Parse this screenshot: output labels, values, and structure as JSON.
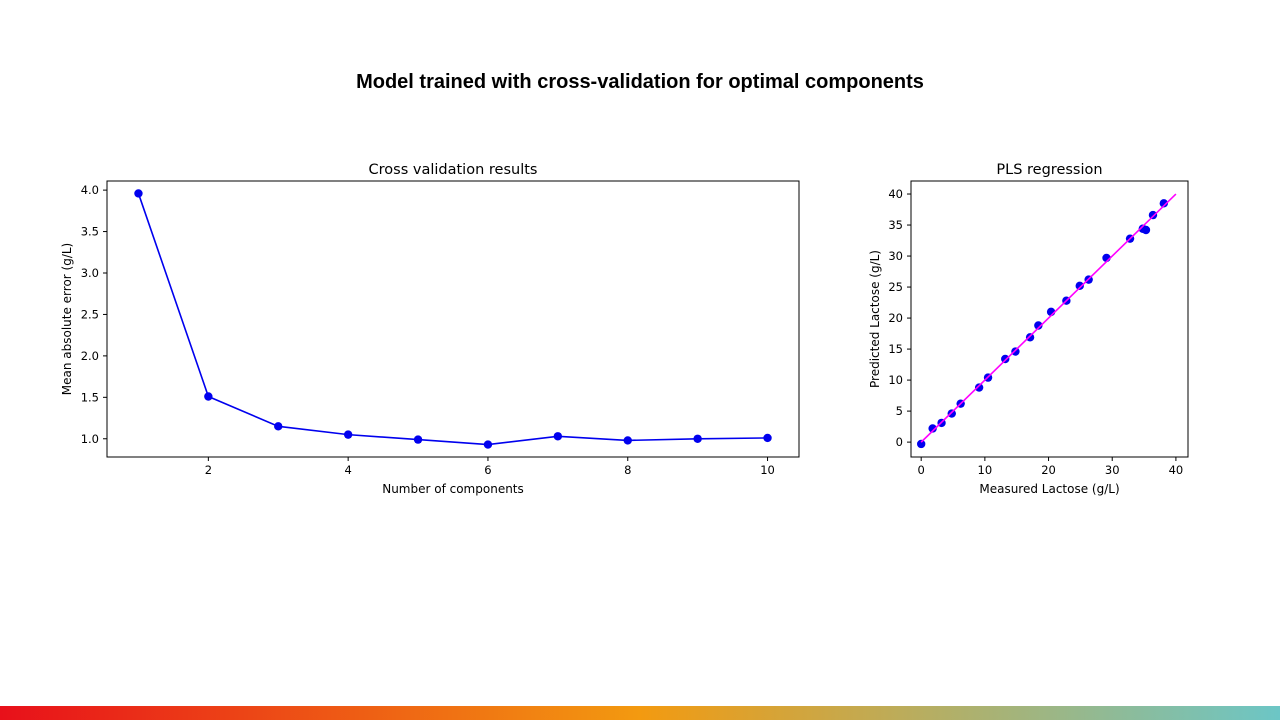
{
  "slide": {
    "title": "Model trained with cross-validation for optimal components",
    "footer_gradient": [
      "#e8101a",
      "#f39a10",
      "#6cc6c6"
    ]
  },
  "chart_data": [
    {
      "type": "line",
      "title": "Cross validation results",
      "xlabel": "Number of components",
      "ylabel": "Mean absolute error (g/L)",
      "x": [
        1,
        2,
        3,
        4,
        5,
        6,
        7,
        8,
        9,
        10
      ],
      "series": [
        {
          "values": [
            3.96,
            1.51,
            1.15,
            1.05,
            0.99,
            0.93,
            1.03,
            0.98,
            1.0,
            1.01
          ]
        }
      ],
      "xlim": [
        0.55,
        10.45
      ],
      "ylim": [
        0.78,
        4.11
      ],
      "xticks": [
        2,
        4,
        6,
        8,
        10
      ],
      "yticks": [
        1.0,
        1.5,
        2.0,
        2.5,
        3.0,
        3.5,
        4.0
      ],
      "ytick_labels": [
        "1.0",
        "1.5",
        "2.0",
        "2.5",
        "3.0",
        "3.5",
        "4.0"
      ],
      "color": "#0000ee",
      "grid": false
    },
    {
      "type": "scatter",
      "title": "PLS regression",
      "xlabel": "Measured Lactose (g/L)",
      "ylabel": "Predicted Lactose (g/L)",
      "points": [
        [
          0,
          -0.3
        ],
        [
          1.8,
          2.2
        ],
        [
          3.2,
          3.1
        ],
        [
          4.8,
          4.6
        ],
        [
          6.2,
          6.2
        ],
        [
          9.1,
          8.8
        ],
        [
          10.5,
          10.4
        ],
        [
          13.2,
          13.4
        ],
        [
          14.8,
          14.6
        ],
        [
          17.1,
          16.9
        ],
        [
          18.4,
          18.8
        ],
        [
          20.4,
          21.0
        ],
        [
          22.8,
          22.8
        ],
        [
          24.9,
          25.2
        ],
        [
          26.3,
          26.2
        ],
        [
          29.1,
          29.7
        ],
        [
          32.8,
          32.8
        ],
        [
          34.8,
          34.4
        ],
        [
          35.3,
          34.2
        ],
        [
          36.4,
          36.6
        ],
        [
          38.1,
          38.5
        ]
      ],
      "fit_line": [
        [
          0,
          0
        ],
        [
          40,
          40
        ]
      ],
      "xlim": [
        -1.6,
        41.9
      ],
      "ylim": [
        -2.4,
        42.1
      ],
      "xticks": [
        0,
        10,
        20,
        30,
        40
      ],
      "yticks": [
        0,
        5,
        10,
        15,
        20,
        25,
        30,
        35,
        40
      ],
      "marker_color": "#0000ee",
      "line_color": "#ff00ff",
      "grid": false
    }
  ]
}
